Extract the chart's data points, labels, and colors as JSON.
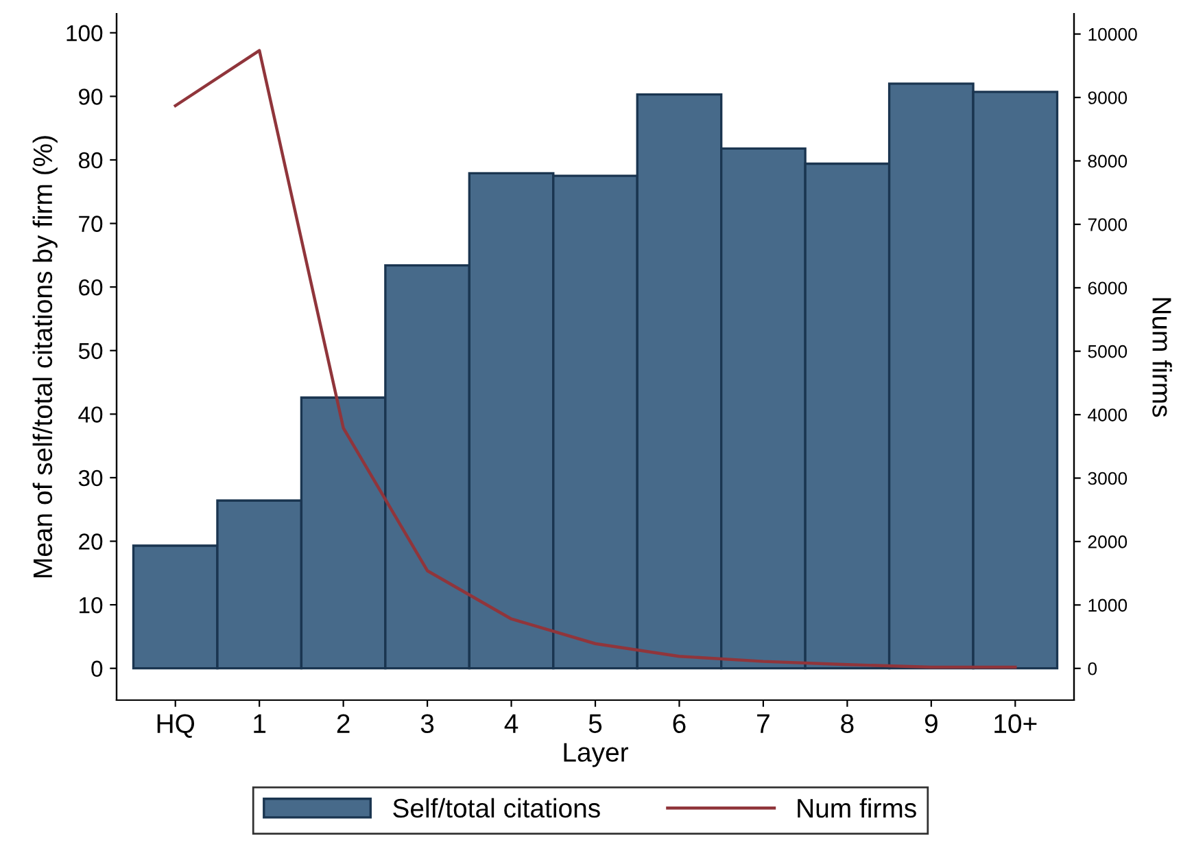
{
  "chart_data": {
    "type": "bar",
    "xlabel": "Layer",
    "ylabel": "Mean of self/total citations by firm (%)",
    "y2label": "Num firms",
    "categories": [
      "HQ",
      "1",
      "2",
      "3",
      "4",
      "5",
      "6",
      "7",
      "8",
      "9",
      "10+"
    ],
    "series": [
      {
        "name": "Self/total citations",
        "color": "#476a8a",
        "values": [
          19.3,
          26.4,
          42.6,
          63.4,
          77.9,
          77.5,
          90.3,
          81.8,
          79.4,
          92.0,
          90.7
        ]
      },
      {
        "name": "Num firms",
        "type": "line",
        "axis": "y2",
        "color": "#90353b",
        "values": [
          8870,
          9740,
          3790,
          1540,
          780,
          390,
          190,
          110,
          60,
          20,
          20
        ]
      }
    ],
    "ylim": [
      -5,
      103
    ],
    "yticks": [
      0,
      10,
      20,
      30,
      40,
      50,
      60,
      70,
      80,
      90,
      100
    ],
    "y2lim": [
      -500,
      10320
    ],
    "y2ticks": [
      0,
      1000,
      2000,
      3000,
      4000,
      5000,
      6000,
      7000,
      8000,
      9000,
      10000
    ],
    "grid": false,
    "legend": "bottom",
    "marker": "none",
    "line_style": "solid"
  }
}
